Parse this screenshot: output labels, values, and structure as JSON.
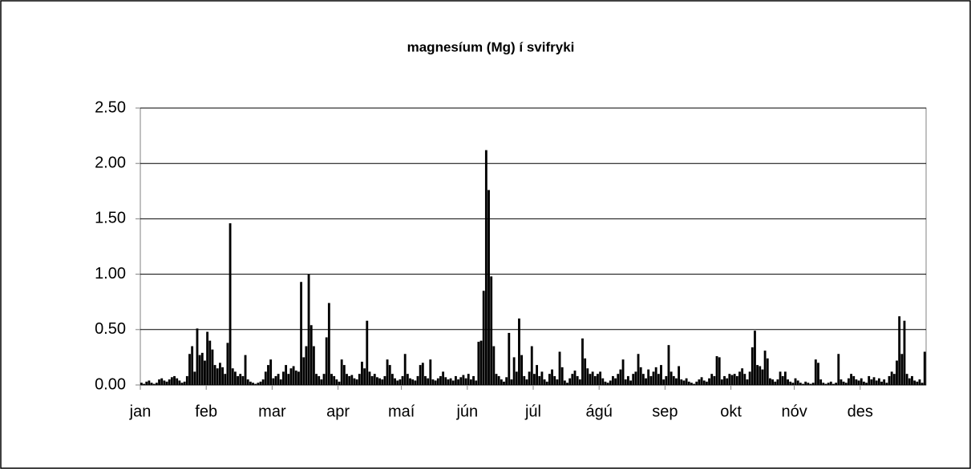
{
  "chart_data": {
    "type": "bar",
    "title": "magnesíum (Mg) í svifryki",
    "color": "#000000",
    "grid": true,
    "ylim": [
      0,
      2.5
    ],
    "yticks": [
      {
        "value": 0,
        "label": "0.00"
      },
      {
        "value": 0.5,
        "label": "0.50"
      },
      {
        "value": 1,
        "label": "1.00"
      },
      {
        "value": 1.5,
        "label": "1.50"
      },
      {
        "value": 2,
        "label": "2.00"
      },
      {
        "value": 2.5,
        "label": "2.50"
      }
    ],
    "xlim": [
      0,
      310
    ],
    "xticks": [
      {
        "value": 0,
        "label": "jan"
      },
      {
        "value": 26,
        "label": "feb"
      },
      {
        "value": 52,
        "label": "mar"
      },
      {
        "value": 78,
        "label": "apr"
      },
      {
        "value": 103,
        "label": "maí"
      },
      {
        "value": 129,
        "label": "jún"
      },
      {
        "value": 155,
        "label": "júl"
      },
      {
        "value": 181,
        "label": "ágú"
      },
      {
        "value": 207,
        "label": "sep"
      },
      {
        "value": 233,
        "label": "okt"
      },
      {
        "value": 258,
        "label": "nóv"
      },
      {
        "value": 284,
        "label": "des"
      }
    ],
    "values": [
      0.02,
      0.01,
      0.03,
      0.04,
      0.02,
      0.01,
      0.02,
      0.05,
      0.06,
      0.04,
      0.03,
      0.05,
      0.07,
      0.08,
      0.06,
      0.04,
      0.02,
      0.03,
      0.08,
      0.28,
      0.35,
      0.12,
      0.51,
      0.27,
      0.29,
      0.22,
      0.48,
      0.4,
      0.32,
      0.18,
      0.15,
      0.2,
      0.16,
      0.1,
      0.38,
      1.46,
      0.15,
      0.12,
      0.08,
      0.1,
      0.08,
      0.27,
      0.05,
      0.03,
      0.02,
      0.01,
      0.02,
      0.03,
      0.05,
      0.12,
      0.18,
      0.23,
      0.06,
      0.08,
      0.1,
      0.05,
      0.12,
      0.18,
      0.1,
      0.15,
      0.17,
      0.13,
      0.12,
      0.93,
      0.25,
      0.35,
      1.0,
      0.54,
      0.35,
      0.1,
      0.08,
      0.05,
      0.1,
      0.43,
      0.74,
      0.1,
      0.08,
      0.05,
      0.03,
      0.23,
      0.18,
      0.1,
      0.08,
      0.09,
      0.06,
      0.05,
      0.1,
      0.21,
      0.15,
      0.58,
      0.12,
      0.08,
      0.1,
      0.07,
      0.06,
      0.05,
      0.08,
      0.23,
      0.18,
      0.1,
      0.06,
      0.04,
      0.05,
      0.08,
      0.28,
      0.1,
      0.06,
      0.05,
      0.04,
      0.08,
      0.18,
      0.2,
      0.08,
      0.06,
      0.23,
      0.05,
      0.04,
      0.06,
      0.08,
      0.12,
      0.07,
      0.05,
      0.06,
      0.04,
      0.08,
      0.05,
      0.07,
      0.09,
      0.06,
      0.1,
      0.05,
      0.08,
      0.04,
      0.39,
      0.4,
      0.85,
      2.12,
      1.76,
      0.98,
      0.35,
      0.1,
      0.08,
      0.05,
      0.03,
      0.07,
      0.47,
      0.05,
      0.25,
      0.12,
      0.6,
      0.27,
      0.08,
      0.05,
      0.12,
      0.35,
      0.1,
      0.18,
      0.08,
      0.12,
      0.05,
      0.03,
      0.1,
      0.14,
      0.08,
      0.05,
      0.3,
      0.16,
      0.04,
      0.02,
      0.06,
      0.1,
      0.13,
      0.08,
      0.05,
      0.42,
      0.24,
      0.15,
      0.1,
      0.12,
      0.08,
      0.1,
      0.12,
      0.06,
      0.03,
      0.02,
      0.04,
      0.08,
      0.06,
      0.1,
      0.14,
      0.23,
      0.05,
      0.08,
      0.04,
      0.1,
      0.12,
      0.28,
      0.16,
      0.1,
      0.06,
      0.14,
      0.08,
      0.12,
      0.16,
      0.1,
      0.18,
      0.05,
      0.08,
      0.36,
      0.12,
      0.08,
      0.06,
      0.17,
      0.05,
      0.04,
      0.06,
      0.03,
      0.02,
      0.01,
      0.03,
      0.05,
      0.07,
      0.04,
      0.03,
      0.06,
      0.1,
      0.08,
      0.26,
      0.25,
      0.05,
      0.08,
      0.06,
      0.1,
      0.09,
      0.1,
      0.08,
      0.12,
      0.15,
      0.1,
      0.05,
      0.12,
      0.34,
      0.49,
      0.18,
      0.17,
      0.14,
      0.31,
      0.24,
      0.06,
      0.05,
      0.03,
      0.05,
      0.12,
      0.08,
      0.12,
      0.05,
      0.03,
      0.02,
      0.06,
      0.04,
      0.02,
      0.01,
      0.03,
      0.02,
      0.01,
      0.02,
      0.23,
      0.2,
      0.05,
      0.02,
      0.01,
      0.02,
      0.03,
      0.01,
      0.02,
      0.28,
      0.05,
      0.03,
      0.02,
      0.06,
      0.1,
      0.08,
      0.05,
      0.04,
      0.06,
      0.03,
      0.02,
      0.08,
      0.05,
      0.07,
      0.04,
      0.06,
      0.03,
      0.05,
      0.02,
      0.08,
      0.12,
      0.1,
      0.22,
      0.62,
      0.28,
      0.58,
      0.1,
      0.06,
      0.08,
      0.04,
      0.03,
      0.05,
      0.02,
      0.3
    ]
  }
}
